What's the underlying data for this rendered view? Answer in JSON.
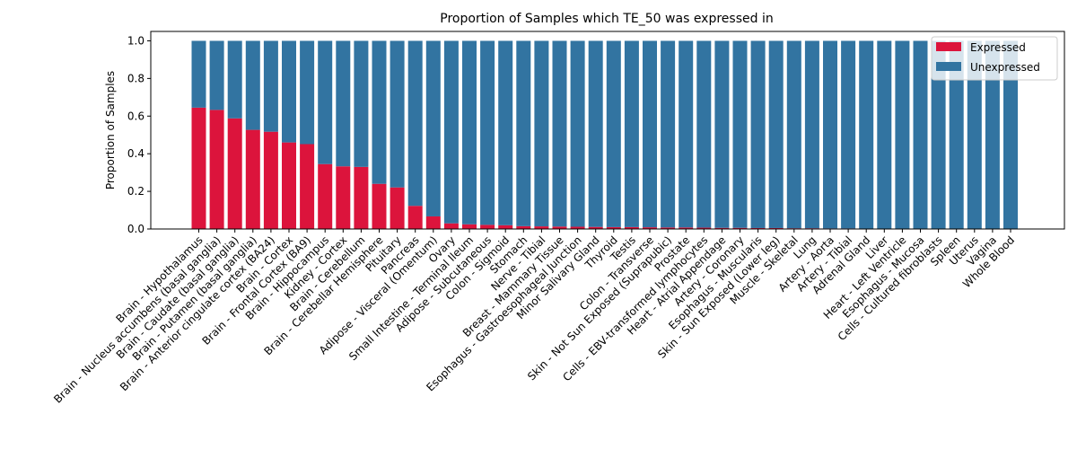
{
  "chart_data": {
    "type": "bar",
    "stacked": true,
    "title": "Proportion of Samples which TE_50 was expressed in",
    "xlabel": "",
    "ylabel": "Proportion of Samples",
    "ylim": [
      0,
      1.05
    ],
    "yticks": [
      "0.0",
      "0.2",
      "0.4",
      "0.6",
      "0.8",
      "1.0"
    ],
    "grid": false,
    "legend_position": "top-right",
    "categories": [
      "Brain - Hypothalamus",
      "Brain - Nucleus accumbens (basal ganglia)",
      "Brain - Caudate (basal ganglia)",
      "Brain - Putamen (basal ganglia)",
      "Brain - Anterior cingulate cortex (BA24)",
      "Brain - Cortex",
      "Brain - Frontal Cortex (BA9)",
      "Brain - Hippocampus",
      "Kidney - Cortex",
      "Brain - Cerebellum",
      "Brain - Cerebellar Hemisphere",
      "Pituitary",
      "Pancreas",
      "Adipose - Visceral (Omentum)",
      "Ovary",
      "Small Intestine - Terminal Ileum",
      "Adipose - Subcutaneous",
      "Colon - Sigmoid",
      "Stomach",
      "Nerve - Tibial",
      "Breast - Mammary Tissue",
      "Esophagus - Gastroesophageal Junction",
      "Minor Salivary Gland",
      "Thyroid",
      "Testis",
      "Colon - Transverse",
      "Skin - Not Sun Exposed (Suprapubic)",
      "Prostate",
      "Cells - EBV-transformed lymphocytes",
      "Heart - Atrial Appendage",
      "Artery - Coronary",
      "Esophagus - Muscularis",
      "Skin - Sun Exposed (Lower leg)",
      "Muscle - Skeletal",
      "Lung",
      "Artery - Aorta",
      "Artery - Tibial",
      "Adrenal Gland",
      "Liver",
      "Heart - Left Ventricle",
      "Esophagus - Mucosa",
      "Cells - Cultured fibroblasts",
      "Spleen",
      "Uterus",
      "Vagina",
      "Whole Blood"
    ],
    "series": [
      {
        "name": "Expressed",
        "color": "#dc143c",
        "values": [
          0.645,
          0.633,
          0.588,
          0.527,
          0.517,
          0.46,
          0.451,
          0.345,
          0.333,
          0.33,
          0.24,
          0.221,
          0.123,
          0.067,
          0.03,
          0.025,
          0.022,
          0.02,
          0.015,
          0.014,
          0.013,
          0.012,
          0.011,
          0.01,
          0.01,
          0.009,
          0.008,
          0.008,
          0.007,
          0.006,
          0.006,
          0.005,
          0.005,
          0.004,
          0.004,
          0.003,
          0.003,
          0.0,
          0.0,
          0.0,
          0.0,
          0.0,
          0.0,
          0.0,
          0.0,
          0.0
        ]
      },
      {
        "name": "Unexpressed",
        "color": "#3274a1",
        "values": [
          0.355,
          0.367,
          0.412,
          0.473,
          0.483,
          0.54,
          0.549,
          0.655,
          0.667,
          0.67,
          0.76,
          0.779,
          0.877,
          0.933,
          0.97,
          0.975,
          0.978,
          0.98,
          0.985,
          0.986,
          0.987,
          0.988,
          0.989,
          0.99,
          0.99,
          0.991,
          0.992,
          0.992,
          0.993,
          0.994,
          0.994,
          0.995,
          0.995,
          0.996,
          0.996,
          0.997,
          0.997,
          1.0,
          1.0,
          1.0,
          1.0,
          1.0,
          1.0,
          1.0,
          1.0,
          1.0
        ]
      }
    ]
  }
}
